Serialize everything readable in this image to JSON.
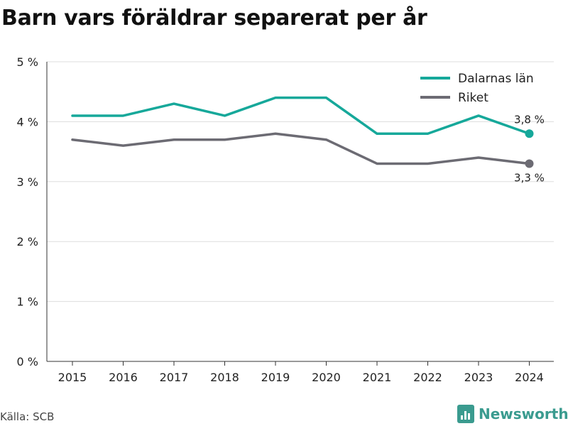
{
  "title": "Barn vars föräldrar separerat per år",
  "source": "Källa: SCB",
  "brand": "Newsworthy",
  "colors": {
    "Dalarnas län": "#16a89a",
    "Riket": "#6c6b73",
    "brand": "#3a9b8f",
    "grid": "#dddddd"
  },
  "chart_data": {
    "type": "line",
    "title": "Barn vars föräldrar separerat per år",
    "xlabel": "",
    "ylabel": "",
    "x": [
      "2015",
      "2016",
      "2017",
      "2018",
      "2019",
      "2020",
      "2021",
      "2022",
      "2023",
      "2024"
    ],
    "ylim": [
      0,
      5
    ],
    "yticks": [
      0,
      1,
      2,
      3,
      4,
      5
    ],
    "ytick_labels": [
      "0 %",
      "1 %",
      "2 %",
      "3 %",
      "4 %",
      "5 %"
    ],
    "grid": true,
    "legend_position": "top-right",
    "series": [
      {
        "name": "Dalarnas län",
        "values": [
          4.1,
          4.1,
          4.3,
          4.1,
          4.4,
          4.4,
          3.8,
          3.8,
          4.1,
          3.8
        ],
        "end_label": "3,8 %"
      },
      {
        "name": "Riket",
        "values": [
          3.7,
          3.6,
          3.7,
          3.7,
          3.8,
          3.7,
          3.3,
          3.3,
          3.4,
          3.3
        ],
        "end_label": "3,3 %"
      }
    ]
  }
}
